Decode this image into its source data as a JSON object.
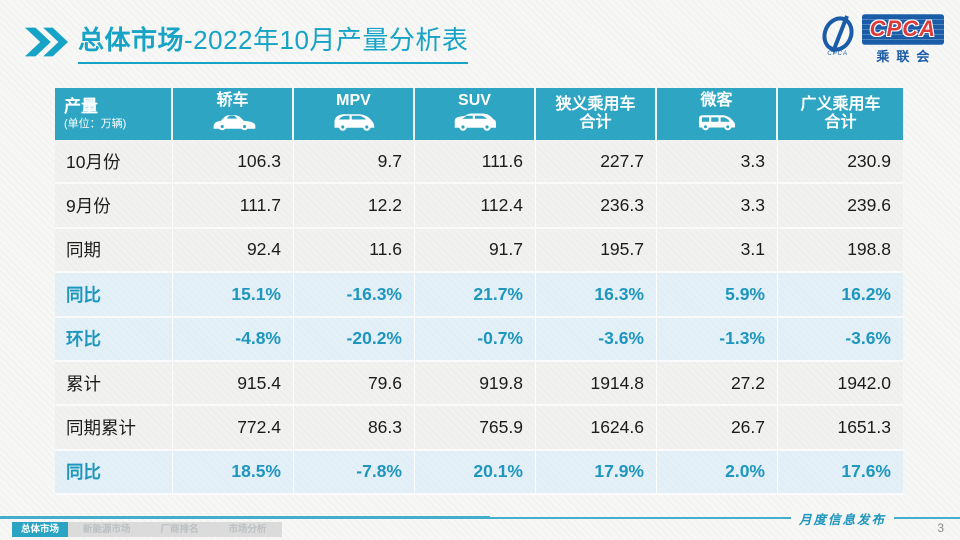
{
  "slide": {
    "title": {
      "prefix": "总体市场",
      "suffix": "-2022年10月产量分析表"
    },
    "logo": {
      "brand": "CPCA",
      "brand_cn": "乘联会",
      "swoosh_caption": "CPCA"
    },
    "watermark": {
      "brand": "CPCA",
      "brand_cn": "乘联会"
    },
    "colors": {
      "accent_teal": "#17a3c6",
      "table_header_bg": "#2da5c3",
      "highlight_text": "#1e96be",
      "highlight_row_bg": "#e3f0f7",
      "logo_blue": "#1a5ca8",
      "logo_red": "#dd3a3c"
    },
    "footer": {
      "tabs": [
        {
          "label": "总体市场",
          "active": true
        },
        {
          "label": "新能源市场",
          "active": false
        },
        {
          "label": "厂商排名",
          "active": false
        },
        {
          "label": "市场分析",
          "active": false
        }
      ],
      "note": "月度信息发布",
      "page": "3"
    }
  },
  "chart_data": {
    "type": "table",
    "title": "总体市场-2022年10月产量分析表",
    "unit_note": "(单位：万辆)",
    "columns": [
      {
        "title": "产量",
        "subtitle": "(单位：万辆)",
        "icon": null
      },
      {
        "title": "轿车",
        "icon": "sedan-icon"
      },
      {
        "title": "MPV",
        "icon": "mpv-icon"
      },
      {
        "title": "SUV",
        "icon": "suv-icon"
      },
      {
        "title": "狭义乘用车",
        "title2": "合计",
        "icon": null
      },
      {
        "title": "微客",
        "icon": "microvan-icon"
      },
      {
        "title": "广义乘用车",
        "title2": "合计",
        "icon": null
      }
    ],
    "rows": [
      {
        "label": "10月份",
        "style": "normal",
        "values": [
          "106.3",
          "9.7",
          "111.6",
          "227.7",
          "3.3",
          "230.9"
        ]
      },
      {
        "label": "9月份",
        "style": "normal",
        "values": [
          "111.7",
          "12.2",
          "112.4",
          "236.3",
          "3.3",
          "239.6"
        ]
      },
      {
        "label": "同期",
        "style": "normal",
        "values": [
          "92.4",
          "11.6",
          "91.7",
          "195.7",
          "3.1",
          "198.8"
        ]
      },
      {
        "label": "同比",
        "style": "highlight",
        "values": [
          "15.1%",
          "-16.3%",
          "21.7%",
          "16.3%",
          "5.9%",
          "16.2%"
        ]
      },
      {
        "label": "环比",
        "style": "highlight",
        "values": [
          "-4.8%",
          "-20.2%",
          "-0.7%",
          "-3.6%",
          "-1.3%",
          "-3.6%"
        ]
      },
      {
        "label": "累计",
        "style": "normal",
        "values": [
          "915.4",
          "79.6",
          "919.8",
          "1914.8",
          "27.2",
          "1942.0"
        ]
      },
      {
        "label": "同期累计",
        "style": "normal",
        "values": [
          "772.4",
          "86.3",
          "765.9",
          "1624.6",
          "26.7",
          "1651.3"
        ]
      },
      {
        "label": "同比",
        "style": "highlight",
        "values": [
          "18.5%",
          "-7.8%",
          "20.1%",
          "17.9%",
          "2.0%",
          "17.6%"
        ]
      }
    ]
  }
}
